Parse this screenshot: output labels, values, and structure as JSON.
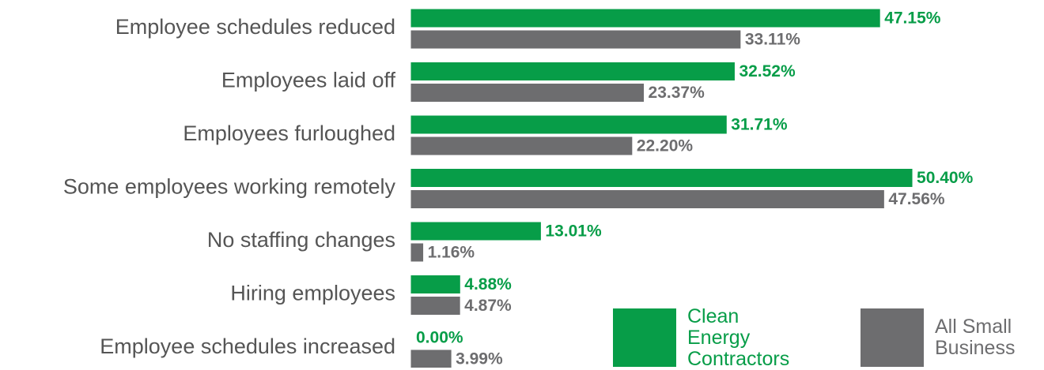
{
  "chart_data": {
    "type": "bar",
    "orientation": "horizontal",
    "categories": [
      "Employee schedules reduced",
      "Employees laid off",
      "Employees furloughed",
      "Some employees working remotely",
      "No staffing changes",
      "Hiring employees",
      "Employee schedules increased"
    ],
    "series": [
      {
        "name": "Clean Energy Contractors",
        "color": "#079d48",
        "values": [
          47.15,
          32.52,
          31.71,
          50.4,
          13.01,
          4.88,
          0.0
        ],
        "value_labels": [
          "47.15%",
          "32.52%",
          "31.71%",
          "50.40%",
          "13.01%",
          "4.88%",
          "0.00%"
        ]
      },
      {
        "name": "All Small Business",
        "color": "#6d6d6f",
        "values": [
          33.11,
          23.37,
          22.2,
          47.56,
          1.16,
          4.87,
          3.99
        ],
        "value_labels": [
          "33.11%",
          "23.37%",
          "22.20%",
          "47.56%",
          "1.16%",
          "4.87%",
          "3.99%"
        ]
      }
    ]
  }
}
